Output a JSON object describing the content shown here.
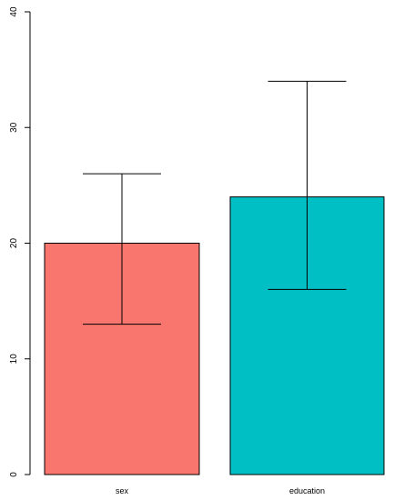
{
  "chart_data": {
    "type": "bar",
    "categories": [
      "sex",
      "education"
    ],
    "values": [
      20,
      24
    ],
    "error_low": [
      13,
      16
    ],
    "error_high": [
      26,
      34
    ],
    "colors": [
      "#F8766D",
      "#00BFC4"
    ],
    "ylim": [
      0,
      40
    ],
    "yticks": [
      0,
      10,
      20,
      30,
      40
    ],
    "grid": false,
    "title": "",
    "xlabel": "",
    "ylabel": ""
  }
}
